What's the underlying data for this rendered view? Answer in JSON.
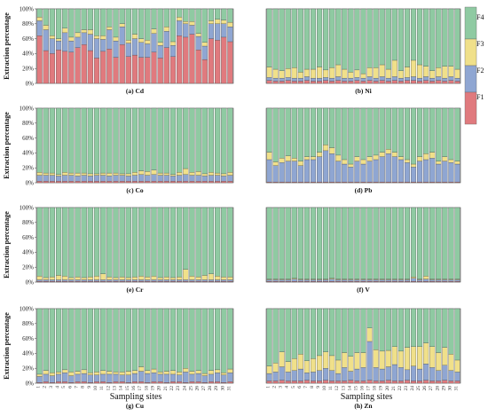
{
  "colors": {
    "F1": "#e07a7e",
    "F2": "#8fa6d2",
    "F3": "#f0e08a",
    "F4": "#8fcaa2"
  },
  "y_axis_label": "Extraction percentage",
  "x_axis_label": "Sampling sites",
  "legend": [
    "F1",
    "F2",
    "F3",
    "F4"
  ],
  "chart_data": [
    {
      "type": "bar",
      "stacked": true,
      "title": "(a) Cd",
      "ylim": [
        0,
        100
      ],
      "yticks": [
        "0%",
        "20%",
        "40%",
        "60%",
        "80%",
        "100%"
      ],
      "x": [
        1,
        2,
        3,
        4,
        5,
        6,
        7,
        8,
        9,
        10,
        11,
        12,
        13,
        14,
        15,
        16,
        17,
        18,
        19,
        20,
        21,
        22,
        23,
        24,
        25,
        26,
        27,
        28,
        29,
        30,
        31
      ],
      "series": [
        {
          "name": "F1",
          "values": [
            64,
            44,
            40,
            45,
            43,
            42,
            48,
            52,
            44,
            34,
            43,
            46,
            35,
            52,
            36,
            38,
            35,
            35,
            42,
            34,
            48,
            36,
            64,
            62,
            66,
            45,
            32,
            60,
            58,
            62,
            56
          ]
        },
        {
          "name": "F2",
          "values": [
            20,
            28,
            20,
            12,
            25,
            15,
            14,
            16,
            22,
            26,
            16,
            26,
            22,
            24,
            18,
            22,
            20,
            18,
            25,
            17,
            22,
            15,
            20,
            18,
            12,
            18,
            18,
            20,
            22,
            18,
            20
          ]
        },
        {
          "name": "F3",
          "values": [
            5,
            6,
            4,
            3,
            6,
            5,
            6,
            4,
            6,
            4,
            5,
            4,
            5,
            4,
            4,
            6,
            5,
            5,
            6,
            4,
            6,
            5,
            5,
            3,
            5,
            4,
            5,
            4,
            6,
            5,
            6
          ]
        }
      ]
    },
    {
      "type": "bar",
      "stacked": true,
      "title": "(b) Ni",
      "ylim": [
        0,
        100
      ],
      "x": [
        1,
        2,
        3,
        4,
        5,
        6,
        7,
        8,
        9,
        10,
        11,
        12,
        13,
        14,
        15,
        16,
        17,
        18,
        19,
        20,
        21,
        22,
        23,
        24,
        25,
        26,
        27,
        28,
        29,
        30,
        31
      ],
      "series": [
        {
          "name": "F1",
          "values": [
            4,
            3,
            3,
            4,
            3,
            3,
            4,
            3,
            3,
            4,
            3,
            4,
            3,
            3,
            4,
            3,
            4,
            3,
            4,
            3,
            4,
            3,
            4,
            4,
            3,
            4,
            3,
            4,
            3,
            4,
            3
          ]
        },
        {
          "name": "F2",
          "values": [
            4,
            4,
            4,
            4,
            4,
            4,
            5,
            4,
            4,
            4,
            4,
            5,
            4,
            4,
            4,
            4,
            5,
            4,
            5,
            4,
            5,
            4,
            4,
            5,
            4,
            5,
            4,
            5,
            4,
            5,
            4
          ]
        },
        {
          "name": "F3",
          "values": [
            14,
            12,
            10,
            12,
            14,
            8,
            10,
            12,
            15,
            10,
            14,
            16,
            12,
            8,
            10,
            6,
            12,
            14,
            16,
            12,
            22,
            10,
            14,
            22,
            18,
            14,
            10,
            12,
            16,
            14,
            12
          ]
        }
      ]
    },
    {
      "type": "bar",
      "stacked": true,
      "title": "(c) Co",
      "ylim": [
        0,
        100
      ],
      "x": [
        1,
        2,
        3,
        4,
        5,
        6,
        7,
        8,
        9,
        10,
        11,
        12,
        13,
        14,
        15,
        16,
        17,
        18,
        19,
        20,
        21,
        22,
        23,
        24,
        25,
        26,
        27,
        28,
        29,
        30,
        31
      ],
      "series": [
        {
          "name": "F1",
          "values": [
            2,
            2,
            2,
            2,
            2,
            2,
            2,
            2,
            2,
            2,
            2,
            2,
            2,
            2,
            2,
            2,
            2,
            2,
            2,
            2,
            2,
            2,
            2,
            2,
            2,
            2,
            2,
            2,
            2,
            2,
            2
          ]
        },
        {
          "name": "F2",
          "values": [
            8,
            8,
            8,
            7,
            8,
            8,
            7,
            8,
            7,
            8,
            8,
            7,
            8,
            8,
            7,
            8,
            9,
            8,
            9,
            8,
            8,
            7,
            8,
            9,
            8,
            8,
            7,
            8,
            8,
            7,
            8
          ]
        },
        {
          "name": "F3",
          "values": [
            4,
            3,
            3,
            2,
            4,
            3,
            4,
            3,
            3,
            2,
            3,
            4,
            3,
            2,
            3,
            4,
            5,
            5,
            6,
            3,
            3,
            2,
            4,
            8,
            4,
            5,
            3,
            4,
            3,
            3,
            4
          ]
        }
      ]
    },
    {
      "type": "bar",
      "stacked": true,
      "title": "(d) Pb",
      "ylim": [
        0,
        100
      ],
      "x": [
        1,
        2,
        3,
        4,
        5,
        6,
        7,
        8,
        9,
        10,
        11,
        12,
        13,
        14,
        15,
        16,
        17,
        18,
        19,
        20,
        21,
        22,
        23,
        24,
        25,
        26,
        27,
        28,
        29,
        30,
        31
      ],
      "series": [
        {
          "name": "F1",
          "values": [
            1,
            1,
            1,
            1,
            1,
            1,
            1,
            1,
            1,
            1,
            1,
            1,
            1,
            1,
            1,
            1,
            1,
            1,
            1,
            1,
            1,
            1,
            1,
            1,
            1,
            1,
            1,
            1,
            1,
            1,
            1
          ]
        },
        {
          "name": "F2",
          "values": [
            30,
            22,
            26,
            28,
            28,
            22,
            30,
            30,
            34,
            42,
            38,
            28,
            24,
            20,
            28,
            24,
            28,
            30,
            34,
            38,
            34,
            30,
            26,
            20,
            28,
            30,
            32,
            24,
            28,
            26,
            24
          ]
        },
        {
          "name": "F3",
          "values": [
            10,
            5,
            6,
            7,
            4,
            6,
            4,
            4,
            6,
            8,
            8,
            8,
            6,
            4,
            6,
            6,
            6,
            6,
            6,
            6,
            6,
            4,
            4,
            4,
            6,
            8,
            8,
            4,
            6,
            4,
            4
          ]
        }
      ]
    },
    {
      "type": "bar",
      "stacked": true,
      "title": "(e) Cr",
      "ylim": [
        0,
        100
      ],
      "x": [
        1,
        2,
        3,
        4,
        5,
        6,
        7,
        8,
        9,
        10,
        11,
        12,
        13,
        14,
        15,
        16,
        17,
        18,
        19,
        20,
        21,
        22,
        23,
        24,
        25,
        26,
        27,
        28,
        29,
        30,
        31
      ],
      "series": [
        {
          "name": "F1",
          "values": [
            1,
            1,
            1,
            1,
            1,
            1,
            1,
            1,
            1,
            1,
            1,
            1,
            1,
            1,
            1,
            1,
            1,
            1,
            1,
            1,
            1,
            1,
            1,
            1,
            1,
            1,
            1,
            1,
            1,
            1,
            1
          ]
        },
        {
          "name": "F2",
          "values": [
            2,
            2,
            2,
            2,
            2,
            2,
            2,
            2,
            2,
            2,
            2,
            2,
            2,
            2,
            2,
            2,
            2,
            2,
            2,
            2,
            2,
            2,
            2,
            2,
            2,
            2,
            2,
            2,
            2,
            2,
            2
          ]
        },
        {
          "name": "F3",
          "values": [
            5,
            3,
            4,
            6,
            5,
            3,
            4,
            3,
            4,
            5,
            8,
            4,
            3,
            4,
            3,
            4,
            5,
            4,
            5,
            3,
            4,
            3,
            4,
            14,
            5,
            4,
            6,
            8,
            5,
            4,
            4
          ]
        }
      ]
    },
    {
      "type": "bar",
      "stacked": true,
      "title": "(f) V",
      "ylim": [
        0,
        100
      ],
      "x": [
        1,
        2,
        3,
        4,
        5,
        6,
        7,
        8,
        9,
        10,
        11,
        12,
        13,
        14,
        15,
        16,
        17,
        18,
        19,
        20,
        21,
        22,
        23,
        24,
        25,
        26,
        27,
        28,
        29,
        30,
        31
      ],
      "series": [
        {
          "name": "F1",
          "values": [
            1,
            1,
            1,
            1,
            1,
            1,
            1,
            1,
            1,
            1,
            1,
            1,
            1,
            1,
            1,
            1,
            1,
            1,
            1,
            1,
            1,
            1,
            1,
            1,
            1,
            1,
            1,
            1,
            1,
            1,
            1
          ]
        },
        {
          "name": "F2",
          "values": [
            2,
            2,
            2,
            2,
            3,
            2,
            2,
            2,
            2,
            2,
            3,
            2,
            2,
            2,
            2,
            2,
            2,
            2,
            2,
            2,
            2,
            2,
            2,
            4,
            2,
            3,
            2,
            2,
            2,
            2,
            2
          ]
        },
        {
          "name": "F3",
          "values": [
            1,
            1,
            1,
            1,
            1,
            1,
            1,
            1,
            1,
            1,
            1,
            1,
            1,
            1,
            1,
            1,
            1,
            1,
            1,
            1,
            1,
            1,
            1,
            2,
            1,
            4,
            1,
            1,
            1,
            1,
            1
          ]
        }
      ]
    },
    {
      "type": "bar",
      "stacked": true,
      "title": "(g) Cu",
      "ylim": [
        0,
        100
      ],
      "x": [
        1,
        2,
        3,
        4,
        5,
        6,
        7,
        8,
        9,
        10,
        11,
        12,
        13,
        14,
        15,
        16,
        17,
        18,
        19,
        20,
        21,
        22,
        23,
        24,
        25,
        26,
        27,
        28,
        29,
        30,
        31
      ],
      "series": [
        {
          "name": "F1",
          "values": [
            1,
            2,
            1,
            2,
            2,
            1,
            2,
            2,
            1,
            2,
            2,
            1,
            2,
            2,
            1,
            2,
            2,
            1,
            2,
            2,
            1,
            2,
            2,
            1,
            2,
            2,
            1,
            2,
            2,
            1,
            2
          ]
        },
        {
          "name": "F2",
          "values": [
            8,
            10,
            9,
            10,
            12,
            9,
            10,
            11,
            10,
            9,
            10,
            11,
            10,
            9,
            10,
            11,
            14,
            12,
            12,
            10,
            11,
            10,
            9,
            14,
            10,
            11,
            9,
            10,
            12,
            10,
            12
          ]
        },
        {
          "name": "F3",
          "values": [
            3,
            5,
            4,
            3,
            4,
            5,
            4,
            5,
            3,
            4,
            5,
            4,
            3,
            4,
            5,
            4,
            6,
            4,
            5,
            3,
            4,
            5,
            4,
            5,
            4,
            4,
            3,
            5,
            4,
            3,
            5
          ]
        }
      ]
    },
    {
      "type": "bar",
      "stacked": true,
      "title": "(h) Zn",
      "ylim": [
        0,
        100
      ],
      "x": [
        1,
        2,
        3,
        4,
        5,
        6,
        7,
        8,
        9,
        10,
        11,
        12,
        13,
        14,
        15,
        16,
        17,
        18,
        19,
        20,
        21,
        22,
        23,
        24,
        25,
        26,
        27,
        28,
        29,
        30,
        31
      ],
      "series": [
        {
          "name": "F1",
          "values": [
            3,
            3,
            4,
            3,
            3,
            3,
            4,
            3,
            3,
            4,
            3,
            3,
            3,
            4,
            3,
            3,
            4,
            3,
            3,
            4,
            3,
            3,
            4,
            3,
            3,
            4,
            3,
            3,
            4,
            3,
            3
          ]
        },
        {
          "name": "F2",
          "values": [
            10,
            12,
            18,
            12,
            14,
            16,
            10,
            12,
            14,
            16,
            14,
            10,
            18,
            12,
            16,
            18,
            52,
            18,
            16,
            18,
            22,
            18,
            14,
            20,
            16,
            22,
            18,
            14,
            20,
            14,
            12
          ]
        },
        {
          "name": "F3",
          "values": [
            10,
            12,
            20,
            14,
            16,
            20,
            16,
            18,
            20,
            22,
            20,
            18,
            20,
            20,
            22,
            20,
            18,
            24,
            24,
            22,
            24,
            22,
            30,
            26,
            30,
            28,
            28,
            24,
            24,
            22,
            16
          ]
        }
      ]
    }
  ]
}
